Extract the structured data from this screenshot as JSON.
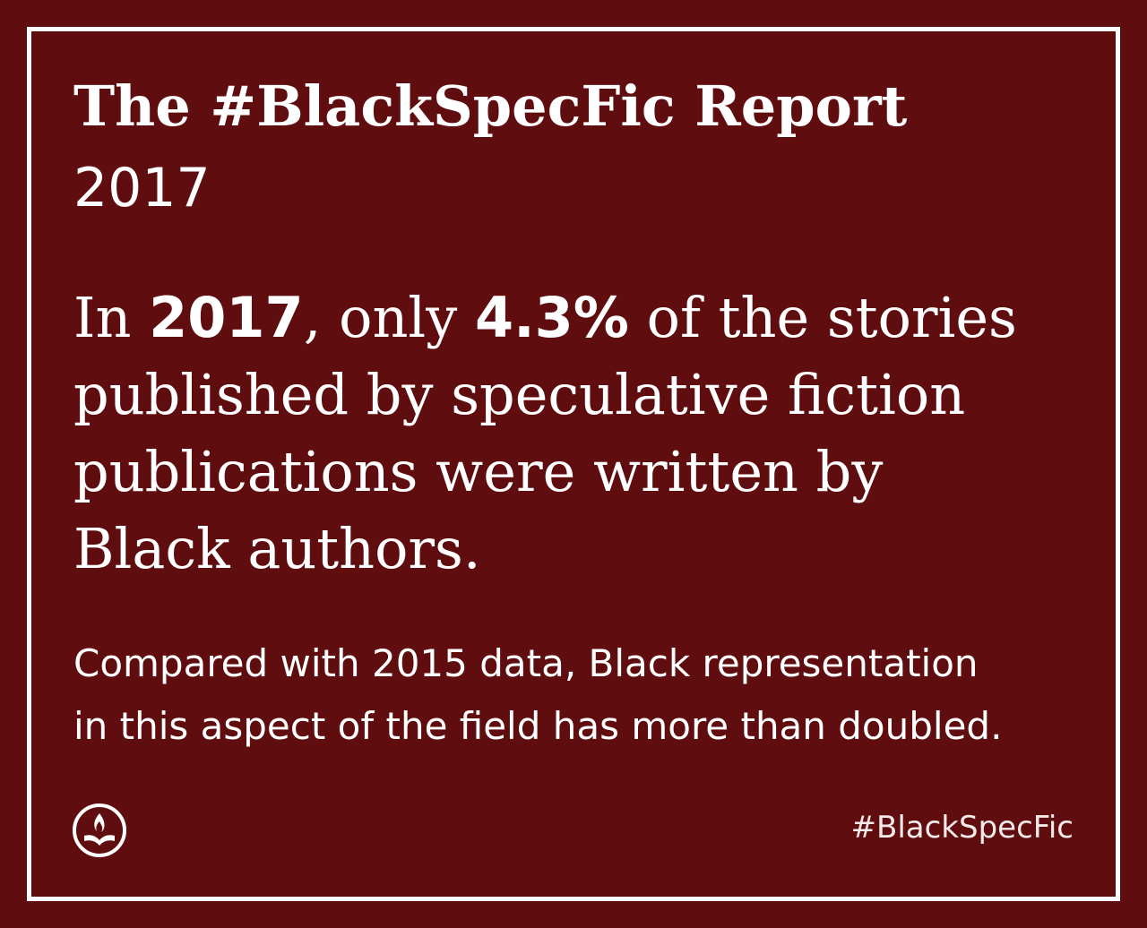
{
  "title": "The #BlackSpecFic Report",
  "year": "2017",
  "headline": {
    "line1_pre": "In ",
    "line1_year": "2017",
    "line1_mid": ", only ",
    "line1_pct": "4.3%",
    "line1_post": " of the stories",
    "line2": "published by speculative fiction",
    "line3": "publications were written by",
    "line4": "Black authors."
  },
  "subtext": {
    "line1": "Compared with 2015 data, Black representation",
    "line2": "in this aspect of the field has more than doubled."
  },
  "logo_icon": "flame-book-icon",
  "hashtag": "#BlackSpecFic",
  "colors": {
    "background": "#600d10",
    "foreground": "#ffffff"
  }
}
